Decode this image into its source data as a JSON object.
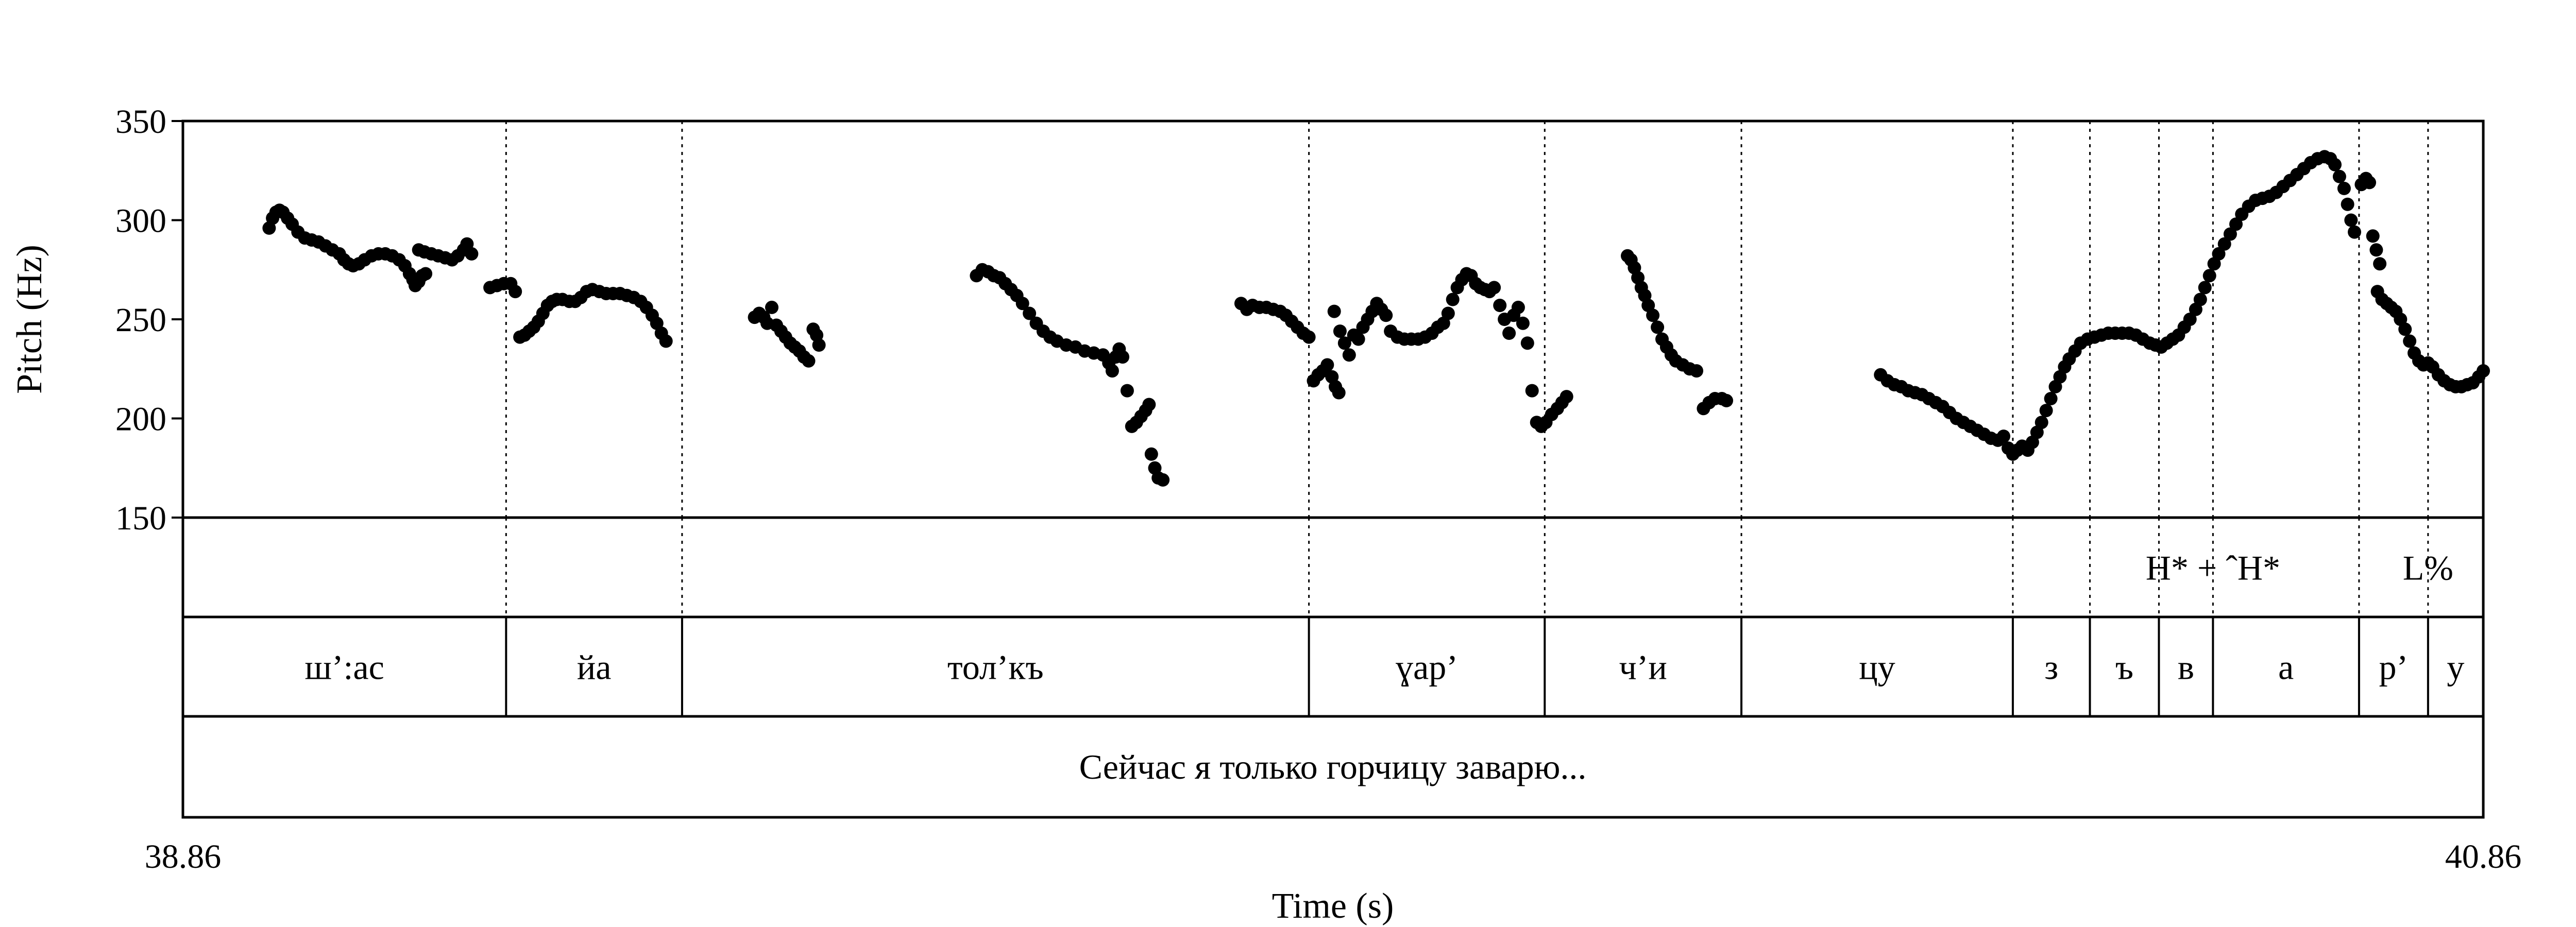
{
  "chart_data": {
    "type": "scatter",
    "xlabel": "Time (s)",
    "ylabel": "Pitch (Hz)",
    "xlim": [
      38.86,
      40.86
    ],
    "ylim": [
      150,
      350
    ],
    "xticks": [
      "38.86",
      "40.86"
    ],
    "yticks": [
      {
        "value": 150,
        "label": "150"
      },
      {
        "value": 200,
        "label": "200"
      },
      {
        "value": 250,
        "label": "250"
      },
      {
        "value": 300,
        "label": "300"
      },
      {
        "value": 350,
        "label": "350"
      }
    ],
    "grid": false,
    "boundaries": [
      39.141,
      39.294,
      39.839,
      40.044,
      40.215,
      40.451,
      40.518,
      40.578,
      40.625,
      40.752,
      40.812
    ],
    "tones": [
      {
        "label": "H* + ˆH*",
        "t": 40.625
      },
      {
        "label": "L%",
        "t": 40.812
      }
    ],
    "segments": [
      {
        "label": "ш’:ас",
        "start": 38.86,
        "end": 39.141
      },
      {
        "label": "йа",
        "start": 39.141,
        "end": 39.294
      },
      {
        "label": "тол’къ",
        "start": 39.294,
        "end": 39.839
      },
      {
        "label": "ɣар’",
        "start": 39.839,
        "end": 40.044
      },
      {
        "label": "ч’и",
        "start": 40.044,
        "end": 40.215
      },
      {
        "label": "цу",
        "start": 40.215,
        "end": 40.451
      },
      {
        "label": "з",
        "start": 40.451,
        "end": 40.518
      },
      {
        "label": "ъ",
        "start": 40.518,
        "end": 40.578
      },
      {
        "label": "в",
        "start": 40.578,
        "end": 40.625
      },
      {
        "label": "а",
        "start": 40.625,
        "end": 40.752
      },
      {
        "label": "р’",
        "start": 40.752,
        "end": 40.812
      },
      {
        "label": "у",
        "start": 40.812,
        "end": 40.86
      }
    ],
    "sentence": "Сейчас я только горчицу заварю...",
    "pitch_points": [
      [
        38.935,
        296
      ],
      [
        38.938,
        301
      ],
      [
        38.941,
        304
      ],
      [
        38.944,
        305
      ],
      [
        38.947,
        304
      ],
      [
        38.951,
        301
      ],
      [
        38.955,
        298
      ],
      [
        38.96,
        294
      ],
      [
        38.966,
        291
      ],
      [
        38.972,
        290
      ],
      [
        38.978,
        289
      ],
      [
        38.984,
        287
      ],
      [
        38.99,
        285
      ],
      [
        38.996,
        283
      ],
      [
        39.0,
        280
      ],
      [
        39.004,
        278
      ],
      [
        39.008,
        277
      ],
      [
        39.013,
        278
      ],
      [
        39.018,
        280
      ],
      [
        39.024,
        282
      ],
      [
        39.03,
        283
      ],
      [
        39.036,
        283
      ],
      [
        39.042,
        282
      ],
      [
        39.048,
        280
      ],
      [
        39.053,
        277
      ],
      [
        39.057,
        273
      ],
      [
        39.06,
        270
      ],
      [
        39.062,
        267
      ],
      [
        39.065,
        269
      ],
      [
        39.068,
        272
      ],
      [
        39.071,
        273
      ],
      [
        39.065,
        285
      ],
      [
        39.07,
        284
      ],
      [
        39.076,
        283
      ],
      [
        39.082,
        282
      ],
      [
        39.088,
        281
      ],
      [
        39.094,
        280
      ],
      [
        39.099,
        282
      ],
      [
        39.104,
        285
      ],
      [
        39.107,
        288
      ],
      [
        39.111,
        283
      ],
      [
        39.127,
        266
      ],
      [
        39.133,
        267
      ],
      [
        39.139,
        268
      ],
      [
        39.145,
        268
      ],
      [
        39.149,
        264
      ],
      [
        39.153,
        241
      ],
      [
        39.157,
        242
      ],
      [
        39.161,
        244
      ],
      [
        39.165,
        246
      ],
      [
        39.169,
        249
      ],
      [
        39.173,
        253
      ],
      [
        39.177,
        257
      ],
      [
        39.181,
        259
      ],
      [
        39.185,
        260
      ],
      [
        39.19,
        260
      ],
      [
        39.196,
        259
      ],
      [
        39.201,
        259
      ],
      [
        39.206,
        261
      ],
      [
        39.211,
        264
      ],
      [
        39.216,
        265
      ],
      [
        39.222,
        264
      ],
      [
        39.228,
        263
      ],
      [
        39.234,
        263
      ],
      [
        39.24,
        263
      ],
      [
        39.246,
        262
      ],
      [
        39.252,
        261
      ],
      [
        39.258,
        259
      ],
      [
        39.263,
        256
      ],
      [
        39.268,
        252
      ],
      [
        39.272,
        248
      ],
      [
        39.276,
        243
      ],
      [
        39.28,
        239
      ],
      [
        39.357,
        251
      ],
      [
        39.361,
        253
      ],
      [
        39.365,
        251
      ],
      [
        39.368,
        248
      ],
      [
        39.372,
        256
      ],
      [
        39.376,
        247
      ],
      [
        39.38,
        244
      ],
      [
        39.384,
        241
      ],
      [
        39.388,
        238
      ],
      [
        39.392,
        236
      ],
      [
        39.396,
        234
      ],
      [
        39.4,
        231
      ],
      [
        39.404,
        229
      ],
      [
        39.408,
        245
      ],
      [
        39.411,
        242
      ],
      [
        39.413,
        237
      ],
      [
        39.55,
        272
      ],
      [
        39.555,
        275
      ],
      [
        39.56,
        274
      ],
      [
        39.565,
        272
      ],
      [
        39.57,
        271
      ],
      [
        39.575,
        268
      ],
      [
        39.58,
        265
      ],
      [
        39.585,
        262
      ],
      [
        39.59,
        258
      ],
      [
        39.596,
        253
      ],
      [
        39.602,
        248
      ],
      [
        39.608,
        244
      ],
      [
        39.614,
        241
      ],
      [
        39.62,
        239
      ],
      [
        39.628,
        237
      ],
      [
        39.636,
        236
      ],
      [
        39.644,
        234
      ],
      [
        39.652,
        233
      ],
      [
        39.66,
        232
      ],
      [
        39.665,
        228
      ],
      [
        39.668,
        224
      ],
      [
        39.671,
        231
      ],
      [
        39.674,
        235
      ],
      [
        39.677,
        231
      ],
      [
        39.681,
        214
      ],
      [
        39.685,
        196
      ],
      [
        39.689,
        198
      ],
      [
        39.693,
        201
      ],
      [
        39.697,
        204
      ],
      [
        39.7,
        207
      ],
      [
        39.702,
        182
      ],
      [
        39.705,
        175
      ],
      [
        39.708,
        170
      ],
      [
        39.712,
        169
      ],
      [
        39.78,
        258
      ],
      [
        39.785,
        255
      ],
      [
        39.79,
        257
      ],
      [
        39.796,
        256
      ],
      [
        39.802,
        256
      ],
      [
        39.808,
        255
      ],
      [
        39.814,
        254
      ],
      [
        39.819,
        252
      ],
      [
        39.824,
        249
      ],
      [
        39.829,
        246
      ],
      [
        39.834,
        243
      ],
      [
        39.839,
        241
      ],
      [
        39.843,
        219
      ],
      [
        39.847,
        222
      ],
      [
        39.851,
        224
      ],
      [
        39.855,
        227
      ],
      [
        39.859,
        221
      ],
      [
        39.862,
        216
      ],
      [
        39.865,
        213
      ],
      [
        39.861,
        254
      ],
      [
        39.866,
        244
      ],
      [
        39.87,
        238
      ],
      [
        39.874,
        232
      ],
      [
        39.878,
        242
      ],
      [
        39.882,
        240
      ],
      [
        39.886,
        246
      ],
      [
        39.89,
        250
      ],
      [
        39.894,
        254
      ],
      [
        39.898,
        258
      ],
      [
        39.902,
        255
      ],
      [
        39.906,
        252
      ],
      [
        39.91,
        244
      ],
      [
        39.916,
        241
      ],
      [
        39.922,
        240
      ],
      [
        39.928,
        240
      ],
      [
        39.934,
        240
      ],
      [
        39.94,
        241
      ],
      [
        39.946,
        243
      ],
      [
        39.951,
        246
      ],
      [
        39.956,
        248
      ],
      [
        39.96,
        253
      ],
      [
        39.964,
        260
      ],
      [
        39.968,
        266
      ],
      [
        39.972,
        270
      ],
      [
        39.976,
        273
      ],
      [
        39.98,
        272
      ],
      [
        39.984,
        268
      ],
      [
        39.988,
        266
      ],
      [
        39.992,
        265
      ],
      [
        39.996,
        264
      ],
      [
        40.0,
        266
      ],
      [
        40.005,
        257
      ],
      [
        40.009,
        250
      ],
      [
        40.013,
        243
      ],
      [
        40.017,
        252
      ],
      [
        40.021,
        256
      ],
      [
        40.025,
        248
      ],
      [
        40.029,
        238
      ],
      [
        40.033,
        214
      ],
      [
        40.037,
        198
      ],
      [
        40.041,
        196
      ],
      [
        40.045,
        198
      ],
      [
        40.05,
        202
      ],
      [
        40.055,
        205
      ],
      [
        40.059,
        208
      ],
      [
        40.063,
        211
      ],
      [
        40.116,
        282
      ],
      [
        40.119,
        280
      ],
      [
        40.122,
        276
      ],
      [
        40.125,
        271
      ],
      [
        40.128,
        266
      ],
      [
        40.131,
        262
      ],
      [
        40.134,
        257
      ],
      [
        40.138,
        252
      ],
      [
        40.142,
        246
      ],
      [
        40.146,
        240
      ],
      [
        40.15,
        236
      ],
      [
        40.154,
        232
      ],
      [
        40.158,
        229
      ],
      [
        40.164,
        227
      ],
      [
        40.17,
        225
      ],
      [
        40.176,
        224
      ],
      [
        40.182,
        205
      ],
      [
        40.187,
        208
      ],
      [
        40.192,
        210
      ],
      [
        40.198,
        210
      ],
      [
        40.202,
        209
      ],
      [
        40.336,
        222
      ],
      [
        40.342,
        219
      ],
      [
        40.348,
        217
      ],
      [
        40.354,
        216
      ],
      [
        40.36,
        214
      ],
      [
        40.366,
        213
      ],
      [
        40.372,
        212
      ],
      [
        40.378,
        210
      ],
      [
        40.384,
        208
      ],
      [
        40.39,
        206
      ],
      [
        40.396,
        203
      ],
      [
        40.402,
        200
      ],
      [
        40.408,
        198
      ],
      [
        40.414,
        196
      ],
      [
        40.42,
        194
      ],
      [
        40.426,
        192
      ],
      [
        40.432,
        190
      ],
      [
        40.438,
        189
      ],
      [
        40.443,
        191
      ],
      [
        40.447,
        185
      ],
      [
        40.451,
        182
      ],
      [
        40.455,
        184
      ],
      [
        40.459,
        186
      ],
      [
        40.464,
        184
      ],
      [
        40.468,
        188
      ],
      [
        40.472,
        193
      ],
      [
        40.476,
        198
      ],
      [
        40.48,
        204
      ],
      [
        40.484,
        210
      ],
      [
        40.488,
        216
      ],
      [
        40.492,
        221
      ],
      [
        40.496,
        226
      ],
      [
        40.5,
        230
      ],
      [
        40.505,
        234
      ],
      [
        40.51,
        238
      ],
      [
        40.516,
        240
      ],
      [
        40.522,
        241
      ],
      [
        40.528,
        242
      ],
      [
        40.534,
        243
      ],
      [
        40.54,
        243
      ],
      [
        40.546,
        243
      ],
      [
        40.552,
        243
      ],
      [
        40.558,
        242
      ],
      [
        40.564,
        240
      ],
      [
        40.57,
        238
      ],
      [
        40.575,
        237
      ],
      [
        40.58,
        236
      ],
      [
        40.585,
        238
      ],
      [
        40.59,
        240
      ],
      [
        40.595,
        242
      ],
      [
        40.6,
        246
      ],
      [
        40.605,
        250
      ],
      [
        40.61,
        255
      ],
      [
        40.614,
        260
      ],
      [
        40.618,
        266
      ],
      [
        40.622,
        272
      ],
      [
        40.626,
        278
      ],
      [
        40.63,
        283
      ],
      [
        40.635,
        288
      ],
      [
        40.64,
        293
      ],
      [
        40.645,
        298
      ],
      [
        40.65,
        303
      ],
      [
        40.656,
        307
      ],
      [
        40.662,
        310
      ],
      [
        40.668,
        311
      ],
      [
        40.674,
        312
      ],
      [
        40.68,
        314
      ],
      [
        40.686,
        317
      ],
      [
        40.692,
        320
      ],
      [
        40.698,
        323
      ],
      [
        40.704,
        326
      ],
      [
        40.71,
        329
      ],
      [
        40.716,
        331
      ],
      [
        40.722,
        332
      ],
      [
        40.727,
        331
      ],
      [
        40.731,
        328
      ],
      [
        40.735,
        322
      ],
      [
        40.739,
        316
      ],
      [
        40.742,
        308
      ],
      [
        40.745,
        300
      ],
      [
        40.748,
        294
      ],
      [
        40.754,
        318
      ],
      [
        40.758,
        321
      ],
      [
        40.761,
        319
      ],
      [
        40.764,
        292
      ],
      [
        40.767,
        285
      ],
      [
        40.77,
        278
      ],
      [
        40.768,
        264
      ],
      [
        40.772,
        260
      ],
      [
        40.776,
        258
      ],
      [
        40.78,
        256
      ],
      [
        40.784,
        254
      ],
      [
        40.788,
        250
      ],
      [
        40.792,
        245
      ],
      [
        40.796,
        239
      ],
      [
        40.8,
        233
      ],
      [
        40.804,
        229
      ],
      [
        40.808,
        227
      ],
      [
        40.812,
        228
      ],
      [
        40.816,
        226
      ],
      [
        40.821,
        222
      ],
      [
        40.826,
        219
      ],
      [
        40.831,
        217
      ],
      [
        40.836,
        216
      ],
      [
        40.841,
        216
      ],
      [
        40.846,
        217
      ],
      [
        40.851,
        218
      ],
      [
        40.856,
        221
      ],
      [
        40.86,
        224
      ]
    ]
  }
}
